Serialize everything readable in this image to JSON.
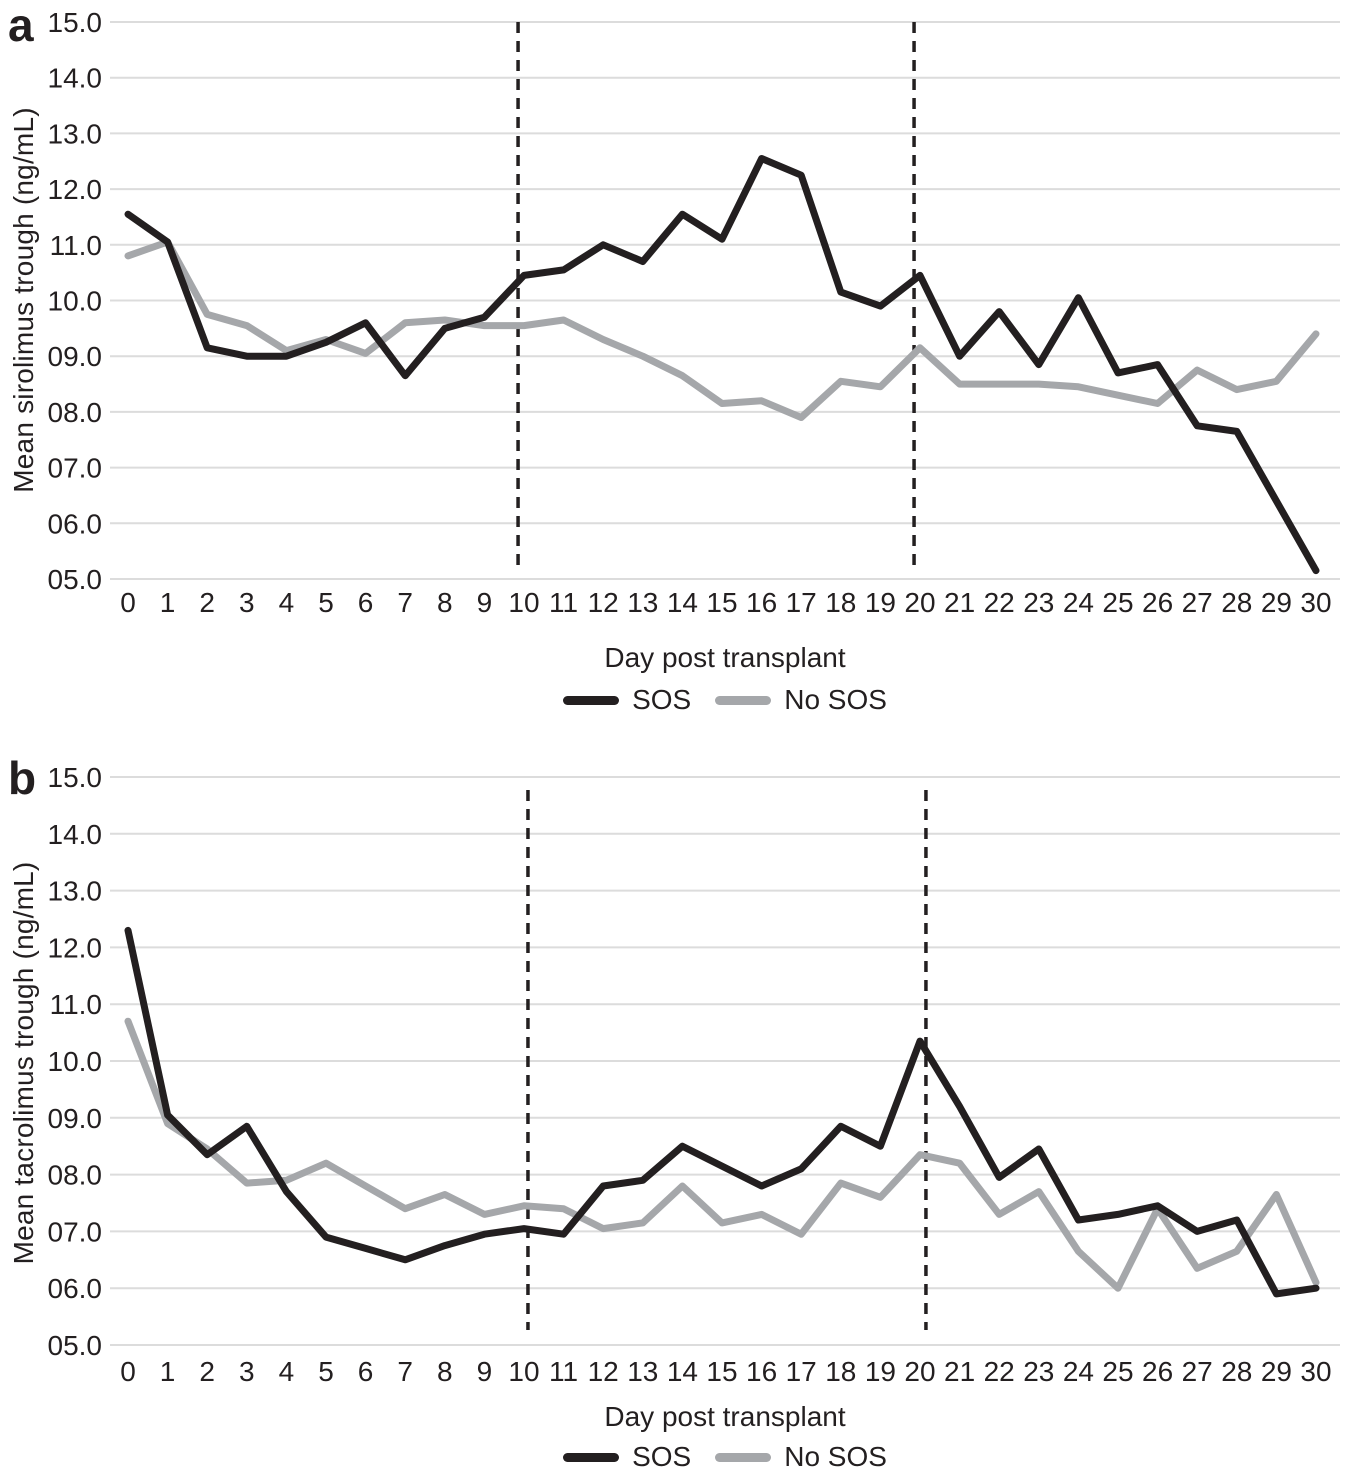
{
  "figure": {
    "background": "#ffffff",
    "text_color": "#231f20",
    "gridline_color": "#dcdcdc",
    "sos_color": "#231f20",
    "no_sos_color": "#a5a7aa"
  },
  "chart_data": [
    {
      "type": "line",
      "panel_label": "a",
      "xlabel": "Day post transplant",
      "ylabel": "Mean sirolimus trough (ng/mL)",
      "ylim": [
        5.0,
        15.0
      ],
      "grid": "horizontal",
      "legend_position": "bottom",
      "x": [
        0,
        1,
        2,
        3,
        4,
        5,
        6,
        7,
        8,
        9,
        10,
        11,
        12,
        13,
        14,
        15,
        16,
        17,
        18,
        19,
        20,
        21,
        22,
        23,
        24,
        25,
        26,
        27,
        28,
        29,
        30
      ],
      "xtick_labels": [
        "0",
        "1",
        "2",
        "3",
        "4",
        "5",
        "6",
        "7",
        "8",
        "9",
        "10",
        "11",
        "12",
        "13",
        "14",
        "15",
        "16",
        "17",
        "18",
        "19",
        "20",
        "21",
        "22",
        "23",
        "24",
        "25",
        "26",
        "27",
        "28",
        "29",
        "30"
      ],
      "ytick_labels": [
        "15.0",
        "14.0",
        "13.0",
        "12.0",
        "11.0",
        "10.0",
        "09.0",
        "08.0",
        "07.0",
        "06.0",
        "05.0"
      ],
      "dashed_vlines_day": [
        9.85,
        19.85
      ],
      "series": [
        {
          "name": "SOS",
          "color": "#231f20",
          "values": [
            11.55,
            11.05,
            9.15,
            9.0,
            9.0,
            9.25,
            9.6,
            8.65,
            9.5,
            9.7,
            10.45,
            10.55,
            11.0,
            10.7,
            11.55,
            11.1,
            12.55,
            12.25,
            10.15,
            9.9,
            10.45,
            9.0,
            9.8,
            8.85,
            10.05,
            8.7,
            8.85,
            7.75,
            7.65,
            6.4,
            5.15
          ]
        },
        {
          "name": "No SOS",
          "color": "#a5a7aa",
          "values": [
            10.8,
            11.05,
            9.75,
            9.55,
            9.1,
            9.3,
            9.05,
            9.6,
            9.65,
            9.55,
            9.55,
            9.65,
            9.3,
            9.0,
            8.65,
            8.15,
            8.2,
            7.9,
            8.55,
            8.45,
            9.15,
            8.5,
            8.5,
            8.5,
            8.45,
            8.3,
            8.15,
            8.75,
            8.4,
            8.55,
            9.4
          ]
        }
      ]
    },
    {
      "type": "line",
      "panel_label": "b",
      "xlabel": "Day post transplant",
      "ylabel": "Mean tacrolimus trough (ng/mL)",
      "ylim": [
        5.0,
        15.0
      ],
      "grid": "horizontal",
      "legend_position": "bottom",
      "x": [
        0,
        1,
        2,
        3,
        4,
        5,
        6,
        7,
        8,
        9,
        10,
        11,
        12,
        13,
        14,
        15,
        16,
        17,
        18,
        19,
        20,
        21,
        22,
        23,
        24,
        25,
        26,
        27,
        28,
        29,
        30
      ],
      "xtick_labels": [
        "0",
        "1",
        "2",
        "3",
        "4",
        "5",
        "6",
        "7",
        "8",
        "9",
        "10",
        "11",
        "12",
        "13",
        "14",
        "15",
        "16",
        "17",
        "18",
        "19",
        "20",
        "21",
        "22",
        "23",
        "24",
        "25",
        "26",
        "27",
        "28",
        "29",
        "30"
      ],
      "ytick_labels": [
        "15.0",
        "14.0",
        "13.0",
        "12.0",
        "11.0",
        "10.0",
        "09.0",
        "08.0",
        "07.0",
        "06.0",
        "05.0"
      ],
      "dashed_vlines_day": [
        10.1,
        20.15
      ],
      "series": [
        {
          "name": "SOS",
          "color": "#231f20",
          "values": [
            12.3,
            9.05,
            8.35,
            8.85,
            7.7,
            6.9,
            6.7,
            6.5,
            6.75,
            6.95,
            7.05,
            6.95,
            7.8,
            7.9,
            8.5,
            8.15,
            7.8,
            8.1,
            8.85,
            8.5,
            10.35,
            9.2,
            7.95,
            8.45,
            7.2,
            7.3,
            7.45,
            7.0,
            7.2,
            5.9,
            6.0
          ]
        },
        {
          "name": "No SOS",
          "color": "#a5a7aa",
          "values": [
            10.7,
            8.9,
            8.45,
            7.85,
            7.9,
            8.2,
            7.8,
            7.4,
            7.65,
            7.3,
            7.45,
            7.4,
            7.05,
            7.15,
            7.8,
            7.15,
            7.3,
            6.95,
            7.85,
            7.6,
            8.35,
            8.2,
            7.3,
            7.7,
            6.65,
            6.0,
            7.4,
            6.35,
            6.65,
            7.65,
            6.1
          ]
        }
      ]
    }
  ]
}
